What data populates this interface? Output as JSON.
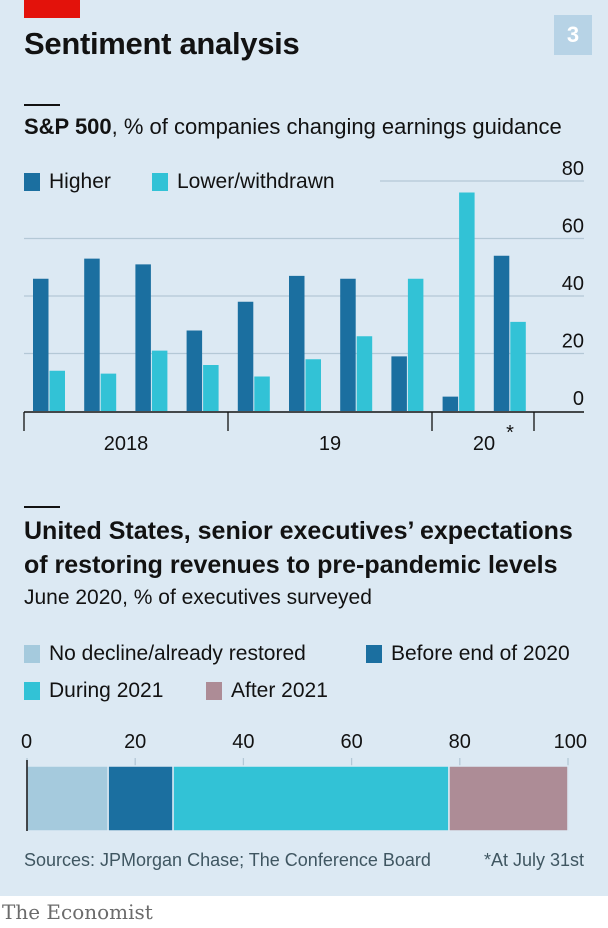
{
  "header": {
    "title": "Sentiment analysis",
    "chart_number": "3"
  },
  "colors": {
    "higher": "#1b6fa0",
    "lower": "#32c2d6",
    "no_decline": "#a5cadd",
    "before_2020": "#1b6fa0",
    "during_2021": "#32c2d6",
    "after_2021": "#ad8c96",
    "grid": "#b4c8d6",
    "panel": "#dce9f3",
    "accent": "#e3120b"
  },
  "chart_data": [
    {
      "type": "bar",
      "title_bold": "S&P 500",
      "title_rest": ", % of companies changing earnings guidance",
      "series": [
        {
          "name": "Higher",
          "values": [
            46,
            53,
            51,
            28,
            38,
            47,
            46,
            19,
            5,
            54
          ]
        },
        {
          "name": "Lower/withdrawn",
          "values": [
            14,
            13,
            21,
            16,
            12,
            18,
            26,
            46,
            76,
            31
          ]
        }
      ],
      "categories_count": 10,
      "ylim": [
        0,
        80
      ],
      "yticks": [
        "80",
        "60",
        "40",
        "20",
        "0"
      ],
      "ytick_values": [
        80,
        60,
        40,
        20,
        0
      ],
      "xlabels": [
        "2018",
        "19",
        "20"
      ],
      "annotation": "*",
      "grid": true
    },
    {
      "type": "bar",
      "stacked": true,
      "orientation": "horizontal",
      "title": "United States, senior executives’ expectations of restoring revenues to pre-pandemic levels",
      "subtitle": "June 2020, % of executives surveyed",
      "series": [
        {
          "name": "No decline/already restored",
          "value": 15
        },
        {
          "name": "Before end of 2020",
          "value": 12
        },
        {
          "name": "During 2021",
          "value": 51
        },
        {
          "name": "After 2021",
          "value": 22
        }
      ],
      "xlim": [
        0,
        100
      ],
      "xticks": [
        "0",
        "20",
        "40",
        "60",
        "80",
        "100"
      ],
      "xtick_values": [
        0,
        20,
        40,
        60,
        80,
        100
      ]
    }
  ],
  "footer": {
    "source": "Sources: JPMorgan Chase; The Conference Board",
    "footnote": "*At July 31st",
    "brand": "The Economist"
  }
}
